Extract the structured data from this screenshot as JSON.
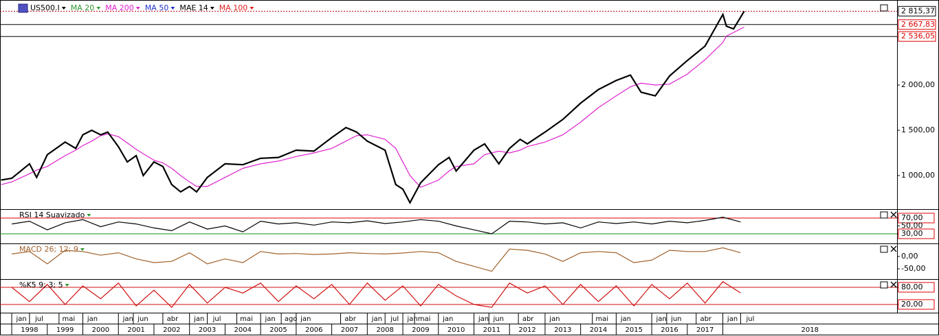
{
  "chart_data": [
    {
      "type": "line",
      "title": "US500.I",
      "x": [
        1997.7,
        1998.0,
        1998.5,
        1998.7,
        1999.0,
        1999.5,
        1999.8,
        2000.0,
        2000.25,
        2000.5,
        2000.7,
        2001.0,
        2001.25,
        2001.5,
        2001.7,
        2002.0,
        2002.25,
        2002.5,
        2002.75,
        2003.0,
        2003.2,
        2003.5,
        2004.0,
        2004.5,
        2005.0,
        2005.5,
        2006.0,
        2006.5,
        2007.0,
        2007.4,
        2007.7,
        2008.0,
        2008.5,
        2008.8,
        2009.0,
        2009.2,
        2009.5,
        2010.0,
        2010.3,
        2010.5,
        2011.0,
        2011.3,
        2011.7,
        2012.0,
        2012.3,
        2012.5,
        2013.0,
        2013.5,
        2014.0,
        2014.5,
        2015.0,
        2015.4,
        2015.7,
        2016.1,
        2016.5,
        2017.0,
        2017.5,
        2018.0,
        2018.1,
        2018.3,
        2018.6
      ],
      "series": [
        {
          "name": "US500.I",
          "color": "#000000",
          "values": [
            950,
            970,
            1130,
            980,
            1230,
            1370,
            1300,
            1450,
            1500,
            1450,
            1480,
            1320,
            1150,
            1220,
            1000,
            1150,
            1100,
            900,
            820,
            880,
            820,
            980,
            1130,
            1120,
            1190,
            1200,
            1280,
            1270,
            1420,
            1530,
            1480,
            1380,
            1280,
            900,
            850,
            700,
            920,
            1120,
            1200,
            1050,
            1280,
            1350,
            1130,
            1300,
            1400,
            1350,
            1480,
            1620,
            1800,
            1950,
            2050,
            2110,
            1920,
            1880,
            2100,
            2270,
            2430,
            2780,
            2650,
            2620,
            2815
          ]
        },
        {
          "name": "MA 20",
          "color": "#2e9a2e"
        },
        {
          "name": "MA 200",
          "color": "#e020d0",
          "values": [
            900,
            930,
            1020,
            1060,
            1100,
            1220,
            1280,
            1330,
            1380,
            1440,
            1460,
            1430,
            1360,
            1290,
            1240,
            1170,
            1140,
            1080,
            1000,
            930,
            880,
            880,
            980,
            1080,
            1130,
            1160,
            1210,
            1250,
            1300,
            1380,
            1440,
            1450,
            1400,
            1300,
            1150,
            1000,
            870,
            950,
            1050,
            1100,
            1130,
            1230,
            1270,
            1250,
            1280,
            1320,
            1370,
            1450,
            1590,
            1750,
            1880,
            1980,
            2020,
            2000,
            2010,
            2120,
            2280,
            2470,
            2540,
            2580,
            2640
          ]
        },
        {
          "name": "MA 50",
          "color": "#2030d0"
        },
        {
          "name": "MAE 14",
          "color": "#000000"
        },
        {
          "name": "MA 100",
          "color": "#e02020"
        }
      ],
      "xlim": [
        1997.67,
        2022.9
      ],
      "ylim": [
        629,
        2939
      ],
      "yticks": [
        {
          "value": 1000,
          "label": "1 000,00"
        },
        {
          "value": 1500,
          "label": "1 500,00"
        },
        {
          "value": 2000,
          "label": "2 000,00"
        }
      ],
      "last_price": {
        "value": 2815.37,
        "label": "2 815,37"
      },
      "levels": [
        {
          "value": 2667.83,
          "label": "2 667,83"
        },
        {
          "value": 2536.05,
          "label": "2 536,05"
        }
      ],
      "xticks": [
        {
          "value": 1998.0,
          "label": "jan"
        },
        {
          "value": 1998.5,
          "label": "jul"
        },
        {
          "value": 1999.33,
          "label": "mai"
        },
        {
          "value": 2000.0,
          "label": "jan"
        },
        {
          "value": 2001.0,
          "label": "jan"
        },
        {
          "value": 2001.42,
          "label": "jun"
        },
        {
          "value": 2002.25,
          "label": "abr"
        },
        {
          "value": 2003.0,
          "label": "jan"
        },
        {
          "value": 2003.5,
          "label": "jul"
        },
        {
          "value": 2004.33,
          "label": "mai"
        },
        {
          "value": 2005.0,
          "label": "jan"
        },
        {
          "value": 2005.58,
          "label": "ago"
        },
        {
          "value": 2006.0,
          "label": "jan"
        },
        {
          "value": 2007.25,
          "label": "abr"
        },
        {
          "value": 2008.0,
          "label": "jan"
        },
        {
          "value": 2008.5,
          "label": "jul"
        },
        {
          "value": 2009.0,
          "label": "jan"
        },
        {
          "value": 2009.33,
          "label": "mai"
        },
        {
          "value": 2010.0,
          "label": "jan"
        },
        {
          "value": 2011.0,
          "label": "jan"
        },
        {
          "value": 2011.42,
          "label": "jun"
        },
        {
          "value": 2012.25,
          "label": "abr"
        },
        {
          "value": 2013.0,
          "label": "jan"
        },
        {
          "value": 2014.33,
          "label": "mai"
        },
        {
          "value": 2015.0,
          "label": "jan"
        },
        {
          "value": 2016.0,
          "label": "jan"
        },
        {
          "value": 2016.42,
          "label": "jun"
        },
        {
          "value": 2017.25,
          "label": "abr"
        },
        {
          "value": 2018.0,
          "label": "jan"
        },
        {
          "value": 2018.5,
          "label": "jul"
        }
      ],
      "year_ticks": [
        1998,
        1999,
        2000,
        2001,
        2002,
        2003,
        2004,
        2005,
        2006,
        2007,
        2008,
        2009,
        2010,
        2011,
        2012,
        2013,
        2014,
        2015,
        2016,
        2017,
        2018
      ]
    },
    {
      "type": "line",
      "title": "RSI 14 Suavizado",
      "x": [
        1998.0,
        1998.5,
        1999.0,
        1999.5,
        2000.0,
        2000.5,
        2001.0,
        2001.5,
        2002.0,
        2002.5,
        2003.0,
        2003.5,
        2004.0,
        2004.5,
        2005.0,
        2005.5,
        2006.0,
        2006.5,
        2007.0,
        2007.5,
        2008.0,
        2008.5,
        2009.0,
        2009.5,
        2010.0,
        2010.5,
        2011.0,
        2011.5,
        2012.0,
        2012.5,
        2013.0,
        2013.5,
        2014.0,
        2014.5,
        2015.0,
        2015.5,
        2016.0,
        2016.5,
        2017.0,
        2017.5,
        2018.0,
        2018.5
      ],
      "color": "#000000",
      "values": [
        55,
        62,
        40,
        58,
        66,
        48,
        60,
        55,
        45,
        38,
        60,
        42,
        50,
        35,
        62,
        55,
        58,
        52,
        60,
        58,
        63,
        56,
        60,
        66,
        62,
        50,
        40,
        30,
        62,
        60,
        55,
        58,
        45,
        60,
        56,
        60,
        55,
        62,
        58,
        64,
        72,
        60
      ],
      "xlim": [
        1997.67,
        2022.9
      ],
      "ylim": [
        5.6,
        92.6
      ],
      "yticks": [
        {
          "value": 70,
          "label": "70,00"
        },
        {
          "value": 50,
          "label": "50,00"
        },
        {
          "value": 30,
          "label": "30,00"
        }
      ],
      "hlines": [
        {
          "value": 70,
          "color": "#e00000"
        },
        {
          "value": 30,
          "color": "#109010"
        }
      ]
    },
    {
      "type": "line",
      "title": "MACD 26; 12; 9",
      "x": [
        1998.0,
        1998.5,
        1999.0,
        1999.5,
        2000.0,
        2000.5,
        2001.0,
        2001.5,
        2002.0,
        2002.5,
        2003.0,
        2003.5,
        2004.0,
        2004.5,
        2005.0,
        2005.5,
        2006.0,
        2006.5,
        2007.0,
        2007.5,
        2008.0,
        2008.5,
        2009.0,
        2009.5,
        2010.0,
        2010.5,
        2011.0,
        2011.5,
        2012.0,
        2012.5,
        2013.0,
        2013.5,
        2014.0,
        2014.5,
        2015.0,
        2015.5,
        2016.0,
        2016.5,
        2017.0,
        2017.5,
        2018.0,
        2018.5
      ],
      "color": "#a0602a",
      "values": [
        10,
        20,
        -30,
        25,
        20,
        5,
        15,
        -10,
        -25,
        -20,
        15,
        -30,
        -10,
        -25,
        20,
        10,
        12,
        8,
        10,
        15,
        12,
        10,
        14,
        20,
        15,
        -20,
        -40,
        -60,
        30,
        25,
        10,
        -20,
        15,
        20,
        15,
        -25,
        -15,
        25,
        20,
        20,
        35,
        15
      ],
      "xlim": [
        1997.67,
        2022.9
      ],
      "ylim": [
        -91.7,
        52.8
      ],
      "yticks": [
        {
          "value": 0,
          "label": "0,00"
        },
        {
          "value": -50,
          "label": "-50,00"
        }
      ]
    },
    {
      "type": "line",
      "title": "%K5 9; 3; 5",
      "x": [
        1998.0,
        1998.5,
        1999.0,
        1999.5,
        2000.0,
        2000.5,
        2001.0,
        2001.5,
        2002.0,
        2002.5,
        2003.0,
        2003.5,
        2004.0,
        2004.5,
        2005.0,
        2005.5,
        2006.0,
        2006.5,
        2007.0,
        2007.5,
        2008.0,
        2008.5,
        2009.0,
        2009.5,
        2010.0,
        2010.5,
        2011.0,
        2011.5,
        2012.0,
        2012.5,
        2013.0,
        2013.5,
        2014.0,
        2014.5,
        2015.0,
        2015.5,
        2016.0,
        2016.5,
        2017.0,
        2017.5,
        2018.0,
        2018.5
      ],
      "color": "#d01010",
      "values": [
        80,
        30,
        90,
        20,
        85,
        40,
        95,
        15,
        70,
        10,
        90,
        25,
        80,
        60,
        95,
        30,
        85,
        40,
        90,
        20,
        95,
        35,
        85,
        15,
        90,
        50,
        20,
        10,
        95,
        60,
        85,
        20,
        90,
        30,
        85,
        15,
        90,
        40,
        95,
        25,
        100,
        60
      ],
      "xlim": [
        1997.67,
        2022.9
      ],
      "ylim": [
        -8.8,
        108.8
      ],
      "yticks": [
        {
          "value": 80,
          "label": "80,00"
        },
        {
          "value": 20,
          "label": "20,00"
        }
      ],
      "hlines": [
        {
          "value": 80,
          "color": "#d01010"
        },
        {
          "value": 20,
          "color": "#d01010"
        }
      ]
    }
  ]
}
